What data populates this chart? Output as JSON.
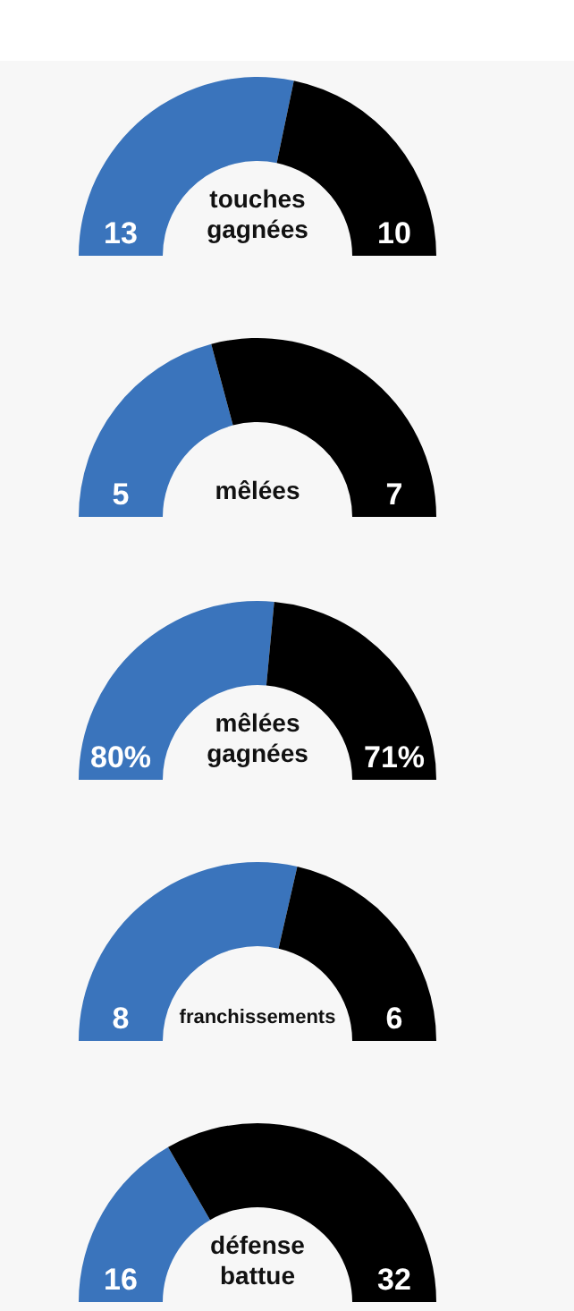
{
  "chart_data": [
    {
      "type": "donut",
      "title": "touches gagnées",
      "categories": [
        null,
        null
      ],
      "values": [
        13,
        10
      ],
      "colors": [
        "#3a74bc",
        "#000000"
      ],
      "data_labels": true
    },
    {
      "type": "donut",
      "title": "mêlées",
      "categories": [
        null,
        null
      ],
      "values": [
        5,
        7
      ],
      "colors": [
        "#3a74bc",
        "#000000"
      ],
      "data_labels": true
    },
    {
      "type": "donut",
      "title": "mêlées gagnées",
      "categories": [
        null,
        null
      ],
      "values": [
        80,
        71
      ],
      "value_labels": [
        "80%",
        "71%"
      ],
      "colors": [
        "#3a74bc",
        "#000000"
      ]
    },
    {
      "type": "donut",
      "title": "franchissements",
      "categories": [
        null,
        null
      ],
      "values": [
        8,
        6
      ],
      "colors": [
        "#3a74bc",
        "#000000"
      ],
      "data_labels": true
    },
    {
      "type": "donut",
      "title": "défense battue",
      "categories": [
        null,
        null
      ],
      "values": [
        16,
        32
      ],
      "colors": [
        "#3a74bc",
        "#000000"
      ],
      "data_labels": true
    }
  ]
}
